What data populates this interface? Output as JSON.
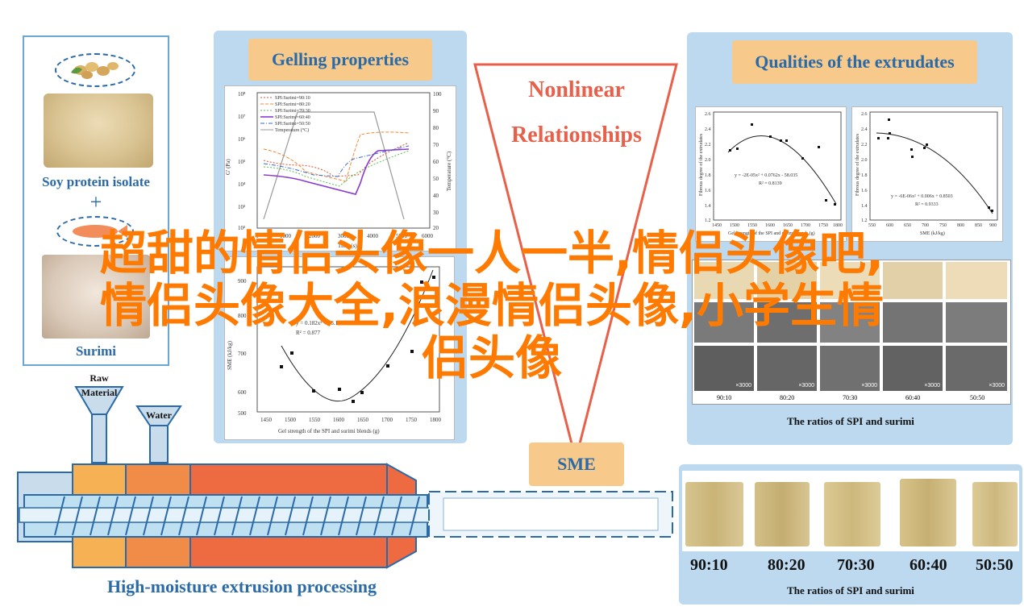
{
  "left_panel": {
    "soy_label": "Soy protein isolate",
    "plus": "+",
    "surimi_label": "Surimi"
  },
  "gelling": {
    "title": "Gelling properties",
    "chart_top": {
      "ylabel_left": "G' (Pa)",
      "ylabel_right": "Temperature (°C)",
      "xlabel": "Time (s)",
      "left_ticks": [
        "10⁸",
        "10⁷",
        "10⁶",
        "10⁵",
        "10⁴",
        "10³",
        "10²"
      ],
      "right_ticks": [
        "100",
        "90",
        "80",
        "70",
        "60",
        "50",
        "40",
        "30",
        "20"
      ],
      "x_ticks": [
        "0",
        "1000",
        "2000",
        "3000",
        "4000",
        "5000",
        "6000"
      ],
      "legend": [
        "SPI:Surimi=90:10",
        "SPI:Surimi=80:20",
        "SPI:Surimi=70:30",
        "SPI:Surimi=60:40",
        "SPI:Surimi=50:50",
        "Temperature (°C)"
      ]
    },
    "chart_bottom": {
      "ylabel": "SME (kJ/kg)",
      "xlabel": "Gel strength of the SPI and surimi blends (g)",
      "equation": "y = 0.182x² + 26.158x + 3.31",
      "r2": "R² = 0.877",
      "y_ticks": [
        "900",
        "800",
        "700",
        "600",
        "500"
      ],
      "x_ticks": [
        "1450",
        "1500",
        "1550",
        "1600",
        "1650",
        "1700",
        "1750",
        "1800"
      ]
    }
  },
  "nonlinear": {
    "line1": "Nonlinear",
    "line2": "Relationships"
  },
  "sme_label": "SME",
  "qualities": {
    "title": "Qualities of the extrudates",
    "chart_left": {
      "ylabel": "Fibrous degree of the extrudates",
      "xlabel": "Gel strength of the SPI and surimi blends (g)",
      "equation": "y = -2E-05x² + 0.0762x - 58.035",
      "r2": "R² = 0.8139",
      "y_ticks": [
        "2.6",
        "2.4",
        "2.2",
        "2.0",
        "1.8",
        "1.6",
        "1.4",
        "1.2"
      ],
      "x_ticks": [
        "1450",
        "1500",
        "1550",
        "1600",
        "1650",
        "1700",
        "1750",
        "1800"
      ]
    },
    "chart_right": {
      "ylabel": "Fibrous degree of the extrudates",
      "xlabel": "SME (kJ/kg)",
      "equation": "y = -6E-06x² + 0.006x + 0.8503",
      "r2": "R² = 0.9333",
      "y_ticks": [
        "2.6",
        "2.4",
        "2.2",
        "2.0",
        "1.8",
        "1.6",
        "1.4",
        "1.2"
      ],
      "x_ticks": [
        "550",
        "600",
        "650",
        "700",
        "750",
        "800",
        "850",
        "900"
      ]
    },
    "sem_captions": [
      "×3000",
      "×3000",
      "×3000",
      "×3000",
      "×3000"
    ],
    "sem_ratios": [
      "90:10",
      "80:20",
      "70:30",
      "60:40",
      "50:50"
    ],
    "caption": "The ratios of SPI and surimi"
  },
  "extrusion": {
    "raw_label": "Raw",
    "raw_label2": "Material",
    "water_label": "Water",
    "process_label": "High-moisture extrusion processing"
  },
  "extrudates": {
    "ratios": [
      "90:10",
      "80:20",
      "70:30",
      "60:40",
      "50:50"
    ],
    "caption": "The ratios of SPI and surimi"
  },
  "overlay": {
    "line1": "超甜的情侣头像一人一半,情侣头像吧,",
    "line2": "情侣头像大全,浪漫情侣头像,小学生情",
    "line3": "侣头像"
  },
  "colors": {
    "panel_bg": "#bcd9ef",
    "label_blue": "#2a6aa8",
    "title_bg": "#f7c98a",
    "overlay": "#ff7a00",
    "nonlinear_red": "#e8604a"
  }
}
